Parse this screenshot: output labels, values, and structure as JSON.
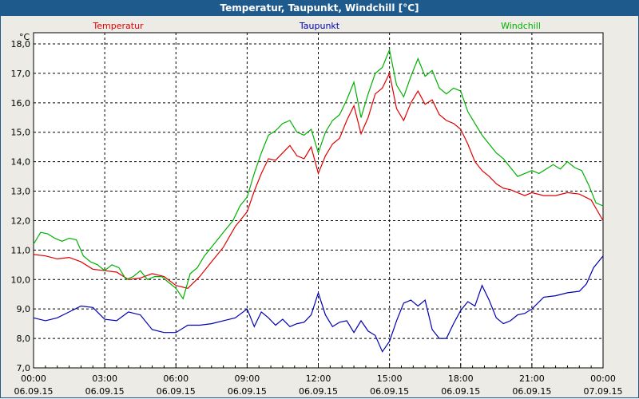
{
  "window": {
    "title": "Temperatur, Taupunkt, Windchill [°C]"
  },
  "chart_data": {
    "type": "line",
    "unit_label": "°C",
    "ylim": [
      7.0,
      18.0
    ],
    "yticks": [
      "18,0",
      "17,0",
      "16,0",
      "15,0",
      "14,0",
      "13,0",
      "12,0",
      "11,0",
      "10,0",
      "9,0",
      "8,0",
      "7,0"
    ],
    "ytick_values": [
      18,
      17,
      16,
      15,
      14,
      13,
      12,
      11,
      10,
      9,
      8,
      7
    ],
    "xlim": [
      0,
      24
    ],
    "xticks": [
      {
        "x": 0,
        "time": "00:00",
        "date": "06.09.15"
      },
      {
        "x": 3,
        "time": "03:00",
        "date": "06.09.15"
      },
      {
        "x": 6,
        "time": "06:00",
        "date": "06.09.15"
      },
      {
        "x": 9,
        "time": "09:00",
        "date": "06.09.15"
      },
      {
        "x": 12,
        "time": "12:00",
        "date": "06.09.15"
      },
      {
        "x": 15,
        "time": "15:00",
        "date": "06.09.15"
      },
      {
        "x": 18,
        "time": "18:00",
        "date": "06.09.15"
      },
      {
        "x": 21,
        "time": "21:00",
        "date": "06.09.15"
      },
      {
        "x": 24,
        "time": "00:00",
        "date": "07.09.15"
      }
    ],
    "grid": true,
    "legend_position": "top",
    "series": [
      {
        "name": "Temperatur",
        "color": "#E00000",
        "points": [
          [
            0,
            10.85
          ],
          [
            0.5,
            10.8
          ],
          [
            1,
            10.7
          ],
          [
            1.5,
            10.75
          ],
          [
            2,
            10.6
          ],
          [
            2.5,
            10.35
          ],
          [
            3,
            10.3
          ],
          [
            3.5,
            10.25
          ],
          [
            4,
            10.0
          ],
          [
            4.5,
            10.05
          ],
          [
            5,
            10.2
          ],
          [
            5.5,
            10.1
          ],
          [
            6,
            9.8
          ],
          [
            6.5,
            9.7
          ],
          [
            7,
            10.1
          ],
          [
            7.5,
            10.6
          ],
          [
            8,
            11.1
          ],
          [
            8.5,
            11.8
          ],
          [
            9,
            12.3
          ],
          [
            9.3,
            13.0
          ],
          [
            9.6,
            13.6
          ],
          [
            9.9,
            14.1
          ],
          [
            10.2,
            14.05
          ],
          [
            10.5,
            14.3
          ],
          [
            10.8,
            14.55
          ],
          [
            11.1,
            14.2
          ],
          [
            11.4,
            14.1
          ],
          [
            11.7,
            14.5
          ],
          [
            12,
            13.6
          ],
          [
            12.3,
            14.2
          ],
          [
            12.6,
            14.6
          ],
          [
            12.9,
            14.8
          ],
          [
            13.2,
            15.4
          ],
          [
            13.5,
            15.9
          ],
          [
            13.8,
            14.95
          ],
          [
            14.1,
            15.5
          ],
          [
            14.4,
            16.3
          ],
          [
            14.7,
            16.5
          ],
          [
            15,
            17.0
          ],
          [
            15.3,
            15.8
          ],
          [
            15.6,
            15.4
          ],
          [
            15.9,
            16.0
          ],
          [
            16.2,
            16.4
          ],
          [
            16.5,
            15.95
          ],
          [
            16.8,
            16.1
          ],
          [
            17.1,
            15.6
          ],
          [
            17.4,
            15.4
          ],
          [
            17.7,
            15.3
          ],
          [
            18,
            15.1
          ],
          [
            18.3,
            14.6
          ],
          [
            18.6,
            14.0
          ],
          [
            18.9,
            13.7
          ],
          [
            19.2,
            13.5
          ],
          [
            19.5,
            13.25
          ],
          [
            19.8,
            13.1
          ],
          [
            20.1,
            13.05
          ],
          [
            20.4,
            12.95
          ],
          [
            20.7,
            12.85
          ],
          [
            21,
            12.95
          ],
          [
            21.5,
            12.85
          ],
          [
            22,
            12.85
          ],
          [
            22.5,
            12.95
          ],
          [
            23,
            12.9
          ],
          [
            23.5,
            12.7
          ],
          [
            24,
            12.0
          ]
        ]
      },
      {
        "name": "Taupunkt",
        "color": "#0000B0",
        "points": [
          [
            0,
            8.7
          ],
          [
            0.5,
            8.6
          ],
          [
            1,
            8.7
          ],
          [
            1.5,
            8.9
          ],
          [
            2,
            9.1
          ],
          [
            2.5,
            9.05
          ],
          [
            3,
            8.65
          ],
          [
            3.5,
            8.6
          ],
          [
            4,
            8.9
          ],
          [
            4.5,
            8.8
          ],
          [
            5,
            8.3
          ],
          [
            5.5,
            8.2
          ],
          [
            6,
            8.2
          ],
          [
            6.5,
            8.45
          ],
          [
            7,
            8.45
          ],
          [
            7.5,
            8.5
          ],
          [
            8,
            8.6
          ],
          [
            8.5,
            8.7
          ],
          [
            9,
            9.0
          ],
          [
            9.3,
            8.4
          ],
          [
            9.6,
            8.9
          ],
          [
            9.9,
            8.7
          ],
          [
            10.2,
            8.45
          ],
          [
            10.5,
            8.65
          ],
          [
            10.8,
            8.4
          ],
          [
            11.1,
            8.5
          ],
          [
            11.4,
            8.55
          ],
          [
            11.7,
            8.8
          ],
          [
            12,
            9.55
          ],
          [
            12.3,
            8.8
          ],
          [
            12.6,
            8.4
          ],
          [
            12.9,
            8.55
          ],
          [
            13.2,
            8.6
          ],
          [
            13.5,
            8.2
          ],
          [
            13.8,
            8.6
          ],
          [
            14.1,
            8.25
          ],
          [
            14.4,
            8.1
          ],
          [
            14.7,
            7.55
          ],
          [
            15,
            7.9
          ],
          [
            15.3,
            8.6
          ],
          [
            15.6,
            9.2
          ],
          [
            15.9,
            9.3
          ],
          [
            16.2,
            9.1
          ],
          [
            16.5,
            9.3
          ],
          [
            16.8,
            8.3
          ],
          [
            17.1,
            8.0
          ],
          [
            17.4,
            8.0
          ],
          [
            17.7,
            8.5
          ],
          [
            18,
            8.95
          ],
          [
            18.3,
            9.25
          ],
          [
            18.6,
            9.1
          ],
          [
            18.9,
            9.8
          ],
          [
            19.2,
            9.3
          ],
          [
            19.5,
            8.7
          ],
          [
            19.8,
            8.5
          ],
          [
            20.1,
            8.6
          ],
          [
            20.4,
            8.8
          ],
          [
            20.7,
            8.85
          ],
          [
            21,
            9.0
          ],
          [
            21.5,
            9.4
          ],
          [
            22,
            9.45
          ],
          [
            22.5,
            9.55
          ],
          [
            23,
            9.6
          ],
          [
            23.3,
            9.85
          ],
          [
            23.6,
            10.4
          ],
          [
            24,
            10.8
          ]
        ]
      },
      {
        "name": "Windchill",
        "color": "#00B000",
        "points": [
          [
            0,
            11.2
          ],
          [
            0.3,
            11.6
          ],
          [
            0.6,
            11.55
          ],
          [
            0.9,
            11.4
          ],
          [
            1.2,
            11.3
          ],
          [
            1.5,
            11.4
          ],
          [
            1.8,
            11.35
          ],
          [
            2.1,
            10.8
          ],
          [
            2.4,
            10.6
          ],
          [
            2.7,
            10.5
          ],
          [
            3,
            10.3
          ],
          [
            3.3,
            10.5
          ],
          [
            3.6,
            10.4
          ],
          [
            3.9,
            10.0
          ],
          [
            4.2,
            10.1
          ],
          [
            4.5,
            10.3
          ],
          [
            4.8,
            10.0
          ],
          [
            5.1,
            10.1
          ],
          [
            5.4,
            10.1
          ],
          [
            5.7,
            9.9
          ],
          [
            6,
            9.7
          ],
          [
            6.3,
            9.35
          ],
          [
            6.6,
            10.2
          ],
          [
            6.9,
            10.4
          ],
          [
            7.2,
            10.8
          ],
          [
            7.5,
            11.1
          ],
          [
            7.8,
            11.4
          ],
          [
            8.1,
            11.7
          ],
          [
            8.4,
            12.0
          ],
          [
            8.7,
            12.5
          ],
          [
            9,
            12.8
          ],
          [
            9.3,
            13.6
          ],
          [
            9.6,
            14.3
          ],
          [
            9.9,
            14.9
          ],
          [
            10.2,
            15.05
          ],
          [
            10.5,
            15.3
          ],
          [
            10.8,
            15.4
          ],
          [
            11.1,
            15.0
          ],
          [
            11.4,
            14.9
          ],
          [
            11.7,
            15.1
          ],
          [
            12,
            14.3
          ],
          [
            12.3,
            15.0
          ],
          [
            12.6,
            15.4
          ],
          [
            12.9,
            15.6
          ],
          [
            13.2,
            16.1
          ],
          [
            13.5,
            16.7
          ],
          [
            13.8,
            15.5
          ],
          [
            14.1,
            16.3
          ],
          [
            14.4,
            17.0
          ],
          [
            14.7,
            17.2
          ],
          [
            15,
            17.8
          ],
          [
            15.3,
            16.6
          ],
          [
            15.6,
            16.2
          ],
          [
            15.9,
            16.9
          ],
          [
            16.2,
            17.5
          ],
          [
            16.5,
            16.9
          ],
          [
            16.8,
            17.1
          ],
          [
            17.1,
            16.5
          ],
          [
            17.4,
            16.3
          ],
          [
            17.7,
            16.5
          ],
          [
            18,
            16.4
          ],
          [
            18.3,
            15.7
          ],
          [
            18.6,
            15.3
          ],
          [
            18.9,
            14.9
          ],
          [
            19.2,
            14.6
          ],
          [
            19.5,
            14.3
          ],
          [
            19.8,
            14.1
          ],
          [
            20.1,
            13.8
          ],
          [
            20.4,
            13.5
          ],
          [
            20.7,
            13.6
          ],
          [
            21,
            13.7
          ],
          [
            21.3,
            13.6
          ],
          [
            21.6,
            13.75
          ],
          [
            21.9,
            13.9
          ],
          [
            22.2,
            13.75
          ],
          [
            22.5,
            14.0
          ],
          [
            22.8,
            13.8
          ],
          [
            23.1,
            13.7
          ],
          [
            23.4,
            13.2
          ],
          [
            23.7,
            12.6
          ],
          [
            24,
            12.5
          ]
        ]
      }
    ]
  }
}
